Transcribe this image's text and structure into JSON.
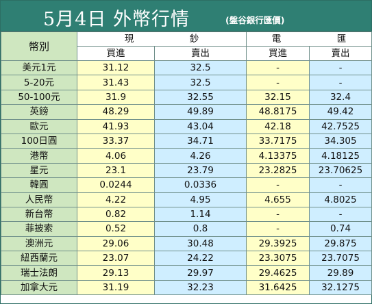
{
  "title": {
    "main": "5月4日 外幣行情",
    "sub": "(盤谷銀行匯價)"
  },
  "header": {
    "currency": "幣別",
    "cash": "現　鈔",
    "wire": "電　匯",
    "buy": "買進",
    "sell": "賣出"
  },
  "colors": {
    "title_bg": "#2f7f73",
    "name_col_bg": "#cfe7c0",
    "buy_col_bg": "#ffffc8",
    "sell_col_bg": "#cfeeff"
  },
  "rows": [
    {
      "currency": "美元1元",
      "cash_buy": "31.12",
      "cash_sell": "32.5",
      "wire_buy": "-",
      "wire_sell": "-"
    },
    {
      "currency": "5-20元",
      "cash_buy": "31.43",
      "cash_sell": "32.5",
      "wire_buy": "-",
      "wire_sell": "-"
    },
    {
      "currency": "50-100元",
      "cash_buy": "31.9",
      "cash_sell": "32.55",
      "wire_buy": "32.15",
      "wire_sell": "32.4"
    },
    {
      "currency": "英鎊",
      "cash_buy": "48.29",
      "cash_sell": "49.89",
      "wire_buy": "48.8175",
      "wire_sell": "49.42"
    },
    {
      "currency": "歐元",
      "cash_buy": "41.93",
      "cash_sell": "43.04",
      "wire_buy": "42.18",
      "wire_sell": "42.7525"
    },
    {
      "currency": "100日圓",
      "cash_buy": "33.37",
      "cash_sell": "34.71",
      "wire_buy": "33.7175",
      "wire_sell": "34.305"
    },
    {
      "currency": "港幣",
      "cash_buy": "4.06",
      "cash_sell": "4.26",
      "wire_buy": "4.13375",
      "wire_sell": "4.18125"
    },
    {
      "currency": "星元",
      "cash_buy": "23.1",
      "cash_sell": "23.79",
      "wire_buy": "23.2825",
      "wire_sell": "23.70625"
    },
    {
      "currency": "韓圓",
      "cash_buy": "0.0244",
      "cash_sell": "0.0336",
      "wire_buy": "-",
      "wire_sell": "-"
    },
    {
      "currency": "人民幣",
      "cash_buy": "4.22",
      "cash_sell": "4.95",
      "wire_buy": "4.655",
      "wire_sell": "4.8025"
    },
    {
      "currency": "新台幣",
      "cash_buy": "0.82",
      "cash_sell": "1.14",
      "wire_buy": "-",
      "wire_sell": "-"
    },
    {
      "currency": "菲披索",
      "cash_buy": "0.52",
      "cash_sell": "0.8",
      "wire_buy": "-",
      "wire_sell": "0.74"
    },
    {
      "currency": "澳洲元",
      "cash_buy": "29.06",
      "cash_sell": "30.48",
      "wire_buy": "29.3925",
      "wire_sell": "29.875"
    },
    {
      "currency": "紐西蘭元",
      "cash_buy": "23.07",
      "cash_sell": "24.22",
      "wire_buy": "23.3075",
      "wire_sell": "23.7075"
    },
    {
      "currency": "瑞士法朗",
      "cash_buy": "29.13",
      "cash_sell": "29.97",
      "wire_buy": "29.4625",
      "wire_sell": "29.89"
    },
    {
      "currency": "加拿大元",
      "cash_buy": "31.19",
      "cash_sell": "32.23",
      "wire_buy": "31.6425",
      "wire_sell": "32.1275"
    }
  ]
}
